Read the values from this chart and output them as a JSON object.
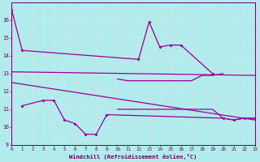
{
  "xlabel": "Windchill (Refroidissement éolien,°C)",
  "bg_color": "#b2ebeb",
  "grid_color": "#d0f0f0",
  "line_color": "#990099",
  "x_hours": [
    0,
    1,
    2,
    3,
    4,
    5,
    6,
    7,
    8,
    9,
    10,
    11,
    12,
    13,
    14,
    15,
    16,
    17,
    18,
    19,
    20,
    21,
    22,
    23
  ],
  "series_upper": [
    16.6,
    14.3,
    null,
    null,
    null,
    null,
    null,
    null,
    null,
    null,
    null,
    null,
    13.8,
    15.9,
    14.5,
    14.6,
    14.6,
    null,
    null,
    13.0,
    null,
    null,
    null,
    null
  ],
  "series_lower": [
    null,
    11.2,
    null,
    11.5,
    11.5,
    10.4,
    10.2,
    9.6,
    9.6,
    10.7,
    null,
    null,
    null,
    null,
    null,
    null,
    null,
    null,
    null,
    null,
    10.5,
    10.4,
    10.5,
    10.5
  ],
  "series_trend1_x": [
    0,
    23
  ],
  "series_trend1_y": [
    13.1,
    12.9
  ],
  "series_trend2_x": [
    0,
    23
  ],
  "series_trend2_y": [
    12.5,
    10.4
  ],
  "series_flat_upper": [
    null,
    null,
    null,
    null,
    null,
    null,
    null,
    null,
    null,
    null,
    12.7,
    12.6,
    12.6,
    12.6,
    12.6,
    12.6,
    12.6,
    12.6,
    12.9,
    12.9,
    13.0,
    null,
    null,
    null
  ],
  "series_flat_lower": [
    null,
    null,
    null,
    null,
    null,
    null,
    null,
    null,
    null,
    null,
    11.0,
    11.0,
    11.0,
    11.0,
    11.0,
    11.0,
    11.0,
    11.0,
    11.0,
    11.0,
    10.5,
    10.4,
    10.5,
    10.5
  ],
  "ylim": [
    9,
    17
  ],
  "xlim": [
    0,
    23
  ],
  "yticks": [
    9,
    10,
    11,
    12,
    13,
    14,
    15,
    16
  ],
  "xticks": [
    0,
    1,
    2,
    3,
    4,
    5,
    6,
    7,
    8,
    9,
    10,
    11,
    12,
    13,
    14,
    15,
    16,
    17,
    18,
    19,
    20,
    21,
    22,
    23
  ]
}
